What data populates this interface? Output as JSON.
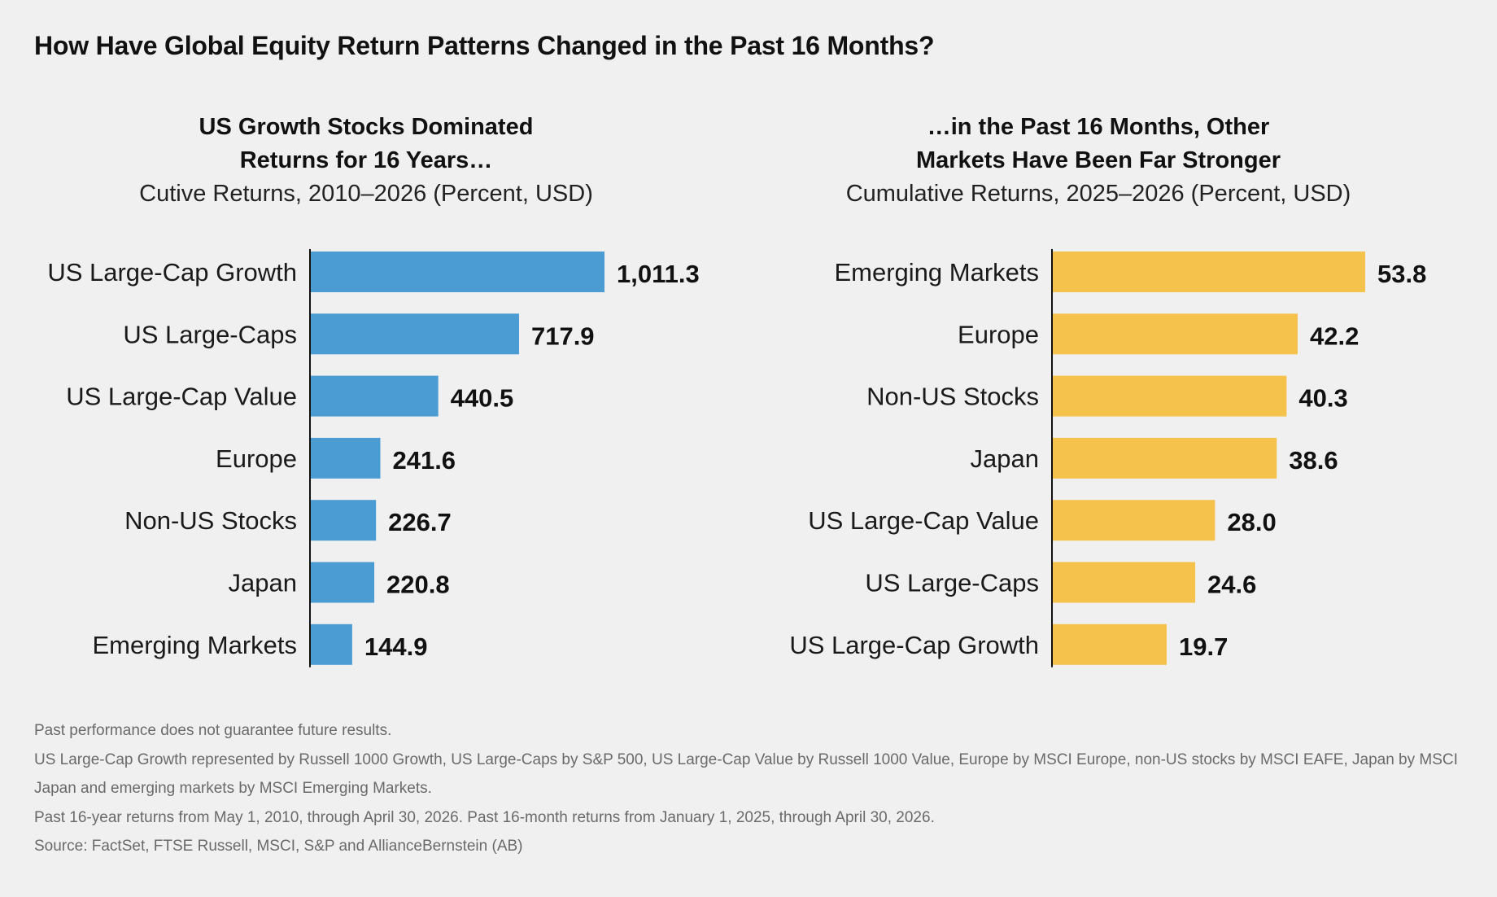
{
  "title": "How Have Global Equity Return Patterns Changed in the Past 16 Months?",
  "chart_data": [
    {
      "type": "bar",
      "orientation": "horizontal",
      "title_line1": "US Growth Stocks Dominated",
      "title_line2": "Returns for 16 Years…",
      "subtitle": "Cutive Returns, 2010–2026 (Percent, USD)",
      "color": "#4b9cd3",
      "categories": [
        "US Large-Cap Growth",
        "US Large-Caps",
        "US Large-Cap Value",
        "Europe",
        "Non-US Stocks",
        "Japan",
        "Emerging Markets"
      ],
      "values": [
        1011.3,
        717.9,
        440.5,
        241.6,
        226.7,
        220.8,
        144.9
      ],
      "value_labels": [
        "1,011.3",
        "717.9",
        "440.5",
        "241.6",
        "226.7",
        "220.8",
        "144.9"
      ],
      "grid": false
    },
    {
      "type": "bar",
      "orientation": "horizontal",
      "title_line1": "…in the Past 16 Months, Other",
      "title_line2": "Markets Have Been Far Stronger",
      "subtitle": "Cumulative Returns, 2025–2026 (Percent, USD)",
      "color": "#f5c24c",
      "categories": [
        "Emerging Markets",
        "Europe",
        "Non-US Stocks",
        "Japan",
        "US Large-Cap Value",
        "US Large-Caps",
        "US Large-Cap Growth"
      ],
      "values": [
        53.8,
        42.2,
        40.3,
        38.6,
        28.0,
        24.6,
        19.7
      ],
      "value_labels": [
        "53.8",
        "42.2",
        "40.3",
        "38.6",
        "28.0",
        "24.6",
        "19.7"
      ],
      "grid": false
    }
  ],
  "footnotes": [
    "Past performance does not guarantee future results.",
    "US Large-Cap Growth represented by Russell 1000 Growth, US Large-Caps by S&P 500, US Large-Cap Value by Russell 1000 Value, Europe by MSCI Europe, non-US stocks by MSCI EAFE, Japan by MSCI Japan and emerging markets by MSCI Emerging Markets.",
    "Past 16-year returns from May 1, 2010, through April 30, 2026. Past 16-month returns from January 1, 2025, through April 30, 2026.",
    "Source: FactSet, FTSE Russell, MSCI, S&P and AllianceBernstein (AB)"
  ]
}
